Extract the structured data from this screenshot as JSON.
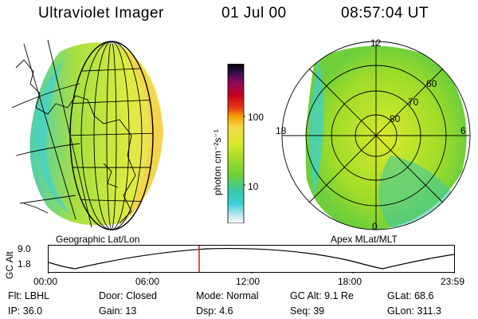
{
  "header": {
    "title": "Ultraviolet Imager",
    "date": "01 Jul 00",
    "time": "08:57:04 UT"
  },
  "colorbar": {
    "unit_label": "photon cm⁻²s⁻¹",
    "ticks": [
      {
        "label": "100",
        "value": 100
      },
      {
        "label": "10",
        "value": 10
      }
    ],
    "colors": [
      "#000000",
      "#3b0f4f",
      "#8f0b5a",
      "#c8001a",
      "#e8401a",
      "#f4a000",
      "#f6d84a",
      "#d9ea2c",
      "#9fdc2a",
      "#6fcf3a",
      "#39c9a8",
      "#3ad0d8",
      "#bfe7ef",
      "#ffffff"
    ]
  },
  "maps": {
    "left_label": "Geographic Lat/Lon",
    "right_label": "Apex MLat/MLT",
    "polar_labels": [
      {
        "text": "12",
        "pos": "top"
      },
      {
        "text": "0",
        "pos": "bottom"
      },
      {
        "text": "18",
        "pos": "left"
      },
      {
        "text": "6",
        "pos": "right"
      },
      {
        "text": "60",
        "pos": "ring-60"
      },
      {
        "text": "70",
        "pos": "ring-70"
      },
      {
        "text": "80",
        "pos": "ring-80"
      }
    ]
  },
  "altitude_plot": {
    "ylabel": "GC Alt",
    "yticks": [
      "9.0",
      "1.8"
    ],
    "xticks": [
      "00:00",
      "06:00",
      "12:00",
      "18:00",
      "23:59"
    ]
  },
  "info": {
    "row1": [
      {
        "key": "Flt:",
        "value": "LBHL"
      },
      {
        "key": "Door:",
        "value": "Closed"
      },
      {
        "key": "Mode:",
        "value": "Normal"
      },
      {
        "key": "GC Alt:",
        "value": "9.1 Re"
      },
      {
        "key": "GLat:",
        "value": "68.6"
      }
    ],
    "row2": [
      {
        "key": "IP:",
        "value": "36.0"
      },
      {
        "key": "Gain:",
        "value": "13"
      },
      {
        "key": "Dsp:",
        "value": "4.6"
      },
      {
        "key": "Seq:",
        "value": "39"
      },
      {
        "key": "GLon:",
        "value": "311.3"
      }
    ]
  }
}
